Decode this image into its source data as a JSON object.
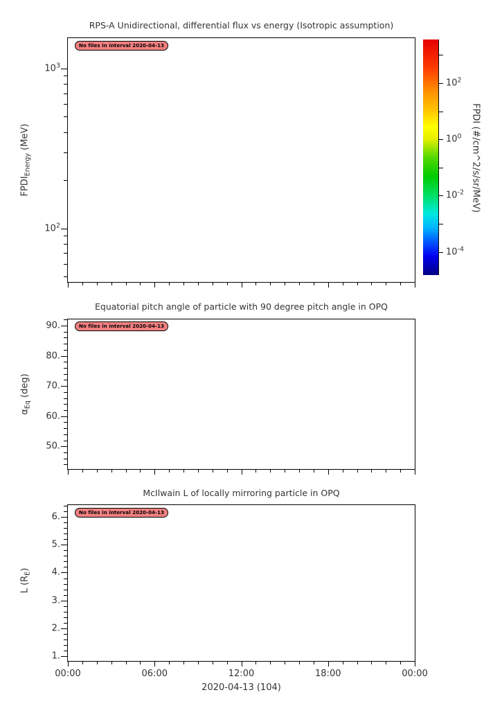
{
  "figure": {
    "bg": "#ffffff",
    "text_color": "#333333",
    "axis_color": "#000000"
  },
  "badge": {
    "text": "No files in interval 2020-04-13",
    "bg": "#f08080",
    "border": "#000000",
    "text_color": "#000000"
  },
  "x_axis": {
    "tick_labels": [
      "00:00",
      "06:00",
      "12:00",
      "18:00",
      "00:00"
    ],
    "label": "2020-04-13 (104)",
    "hours": 24,
    "major_step_hours": 6,
    "minor_step_hours": 1
  },
  "chart_data": [
    {
      "id": "flux",
      "type": "heatmap",
      "title": "RPS-A Unidirectional, differential flux vs energy (Isotropic assumption)",
      "ylabel": "FPDI_Energy (MeV)",
      "ylabel_parts": {
        "main": "FPDI",
        "sub": "Energy",
        "unit": " (MeV)"
      },
      "y_scale": "log",
      "ylim": [
        46.2,
        1550
      ],
      "y_major_ticks": [
        {
          "value": 1000,
          "exp": 3
        },
        {
          "value": 100,
          "exp": 2
        }
      ],
      "y_minor_ticks": [
        900,
        800,
        700,
        600,
        500,
        400,
        300,
        200,
        90,
        80,
        70,
        60,
        50
      ],
      "grid": false,
      "series": [],
      "annotation": "No files in interval 2020-04-13",
      "colorbar": {
        "label": "FPDI (#/cm^2/s/sr/MeV)",
        "scale": "log",
        "exp_top": 3.55,
        "exp_bottom": -4.82,
        "ticks": [
          {
            "exp": 3,
            "labeled": false
          },
          {
            "exp": 2,
            "labeled": true
          },
          {
            "exp": 1,
            "labeled": false
          },
          {
            "exp": 0,
            "labeled": true
          },
          {
            "exp": -1,
            "labeled": false
          },
          {
            "exp": -2,
            "labeled": true
          },
          {
            "exp": -3,
            "labeled": false
          },
          {
            "exp": -4,
            "labeled": true
          }
        ],
        "gradient": [
          {
            "color": "#000083",
            "pos": 0
          },
          {
            "color": "#0000f0",
            "pos": 8
          },
          {
            "color": "#0055ff",
            "pos": 14
          },
          {
            "color": "#00b4ff",
            "pos": 20
          },
          {
            "color": "#00e8e0",
            "pos": 26
          },
          {
            "color": "#00e070",
            "pos": 33
          },
          {
            "color": "#00cc00",
            "pos": 42
          },
          {
            "color": "#55d800",
            "pos": 50
          },
          {
            "color": "#e8f000",
            "pos": 58
          },
          {
            "color": "#ffff00",
            "pos": 63
          },
          {
            "color": "#ffc400",
            "pos": 70
          },
          {
            "color": "#ff9000",
            "pos": 78
          },
          {
            "color": "#ff3c00",
            "pos": 88
          },
          {
            "color": "#e60000",
            "pos": 100
          }
        ]
      }
    },
    {
      "id": "pitch",
      "type": "line",
      "title": "Equatorial pitch angle of particle with 90 degree pitch angle in OPQ",
      "ylabel": "α_Eq (deg)",
      "ylabel_parts": {
        "main": "α",
        "sub": "Eq",
        "unit": " (deg)"
      },
      "y_scale": "linear",
      "ylim": [
        42.5,
        92.05
      ],
      "y_major_ticks": [
        {
          "value": 90,
          "label": "90."
        },
        {
          "value": 80,
          "label": "80."
        },
        {
          "value": 70,
          "label": "70."
        },
        {
          "value": 60,
          "label": "60."
        },
        {
          "value": 50,
          "label": "50."
        }
      ],
      "y_minor_ticks": [
        92,
        88,
        86,
        84,
        82,
        78,
        76,
        74,
        72,
        68,
        66,
        64,
        62,
        58,
        56,
        54,
        52,
        48,
        46,
        44
      ],
      "grid": false,
      "series": [],
      "annotation": "No files in interval 2020-04-13"
    },
    {
      "id": "lshell",
      "type": "line",
      "title": "McIlwain L of locally mirroring particle in OPQ",
      "ylabel": "L (R_E)",
      "ylabel_parts": {
        "main": "L (R",
        "sub": "E",
        "unit": ")"
      },
      "y_scale": "linear",
      "ylim": [
        0.835,
        6.42
      ],
      "y_major_ticks": [
        {
          "value": 6,
          "label": "6."
        },
        {
          "value": 5,
          "label": "5."
        },
        {
          "value": 4,
          "label": "4."
        },
        {
          "value": 3,
          "label": "3."
        },
        {
          "value": 2,
          "label": "2."
        },
        {
          "value": 1,
          "label": "1."
        }
      ],
      "y_minor_ticks": [
        6.4,
        6.2,
        5.8,
        5.6,
        5.4,
        5.2,
        4.8,
        4.6,
        4.4,
        4.2,
        3.8,
        3.6,
        3.4,
        3.2,
        2.8,
        2.6,
        2.4,
        2.2,
        1.8,
        1.6,
        1.4,
        1.2
      ],
      "grid": false,
      "series": [],
      "annotation": "No files in interval 2020-04-13"
    }
  ]
}
